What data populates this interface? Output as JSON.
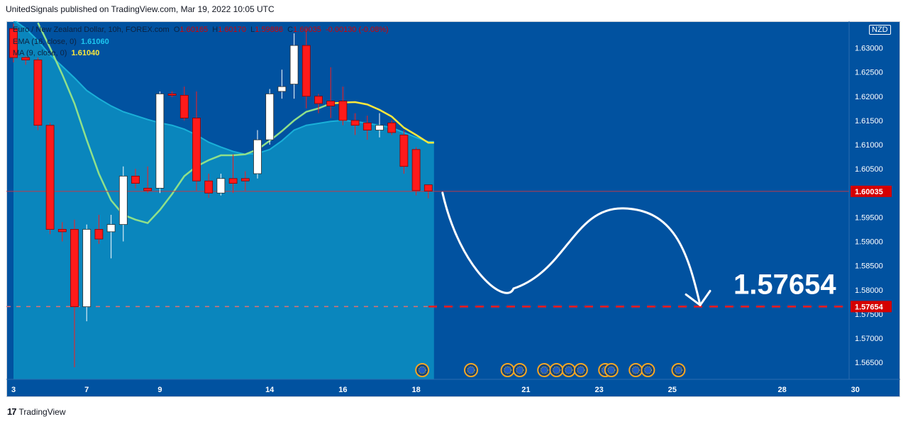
{
  "header": {
    "published": "UnitedSignals published on TradingView.com, Mar 19, 2022 10:05 UTC"
  },
  "legend": {
    "symbol": "Euro / New Zealand Dollar, 10h, FOREX.com",
    "o_label": "O",
    "o": "1.60165",
    "h_label": "H",
    "h": "1.60170",
    "l_label": "L",
    "l": "1.59886",
    "c_label": "C",
    "c": "1.60035",
    "change": "-0.00130 (-0.08%)",
    "ema_label": "EMA (16, close, 0)",
    "ema_value": "1.61060",
    "ma_label": "MA (9, close, 0)",
    "ma_value": "1.61040"
  },
  "currency_badge": "NZD",
  "target_label": "1.57654",
  "footer": {
    "brand": "TradingView"
  },
  "colors": {
    "background": "#0152a0",
    "area": "#0a86bd",
    "ema": "#1ab0d8",
    "ma": "#8fe08a",
    "ma_recent": "#ffe83b",
    "up": "#ffffff",
    "down": "#ff1a1a",
    "target": "#ff1a1a",
    "arrow": "#ffffff"
  },
  "chart_data": {
    "type": "candlestick",
    "symbol": "EURNZD",
    "timeframe": "10h",
    "ylim": [
      1.5615,
      1.6355
    ],
    "y_ticks": [
      "1.56500",
      "1.57000",
      "1.57500",
      "1.58000",
      "1.58500",
      "1.59000",
      "1.59500",
      "1.60000",
      "1.60500",
      "1.61000",
      "1.61500",
      "1.62000",
      "1.62500",
      "1.63000"
    ],
    "x_ticks": [
      {
        "label": "3",
        "i": 0
      },
      {
        "label": "7",
        "i": 6
      },
      {
        "label": "9",
        "i": 12
      },
      {
        "label": "14",
        "i": 21
      },
      {
        "label": "16",
        "i": 27
      },
      {
        "label": "18",
        "i": 33
      },
      {
        "label": "21",
        "i": 42
      },
      {
        "label": "23",
        "i": 48
      },
      {
        "label": "25",
        "i": 54
      },
      {
        "label": "28",
        "i": 63
      },
      {
        "label": "30",
        "i": 69
      }
    ],
    "candles": [
      {
        "o": 1.634,
        "h": 1.635,
        "l": 1.627,
        "c": 1.628
      },
      {
        "o": 1.628,
        "h": 1.6283,
        "l": 1.6265,
        "c": 1.6275
      },
      {
        "o": 1.6275,
        "h": 1.628,
        "l": 1.613,
        "c": 1.614
      },
      {
        "o": 1.614,
        "h": 1.6145,
        "l": 1.5915,
        "c": 1.5925
      },
      {
        "o": 1.5925,
        "h": 1.594,
        "l": 1.59,
        "c": 1.592
      },
      {
        "o": 1.5925,
        "h": 1.5945,
        "l": 1.564,
        "c": 1.5765
      },
      {
        "o": 1.5765,
        "h": 1.5935,
        "l": 1.5735,
        "c": 1.5925
      },
      {
        "o": 1.5925,
        "h": 1.5955,
        "l": 1.5895,
        "c": 1.5905
      },
      {
        "o": 1.592,
        "h": 1.5955,
        "l": 1.5865,
        "c": 1.5935
      },
      {
        "o": 1.5935,
        "h": 1.6055,
        "l": 1.59,
        "c": 1.6035
      },
      {
        "o": 1.6035,
        "h": 1.605,
        "l": 1.601,
        "c": 1.602
      },
      {
        "o": 1.601,
        "h": 1.6055,
        "l": 1.6,
        "c": 1.6005
      },
      {
        "o": 1.601,
        "h": 1.621,
        "l": 1.6,
        "c": 1.6205
      },
      {
        "o": 1.6205,
        "h": 1.621,
        "l": 1.6198,
        "c": 1.6202
      },
      {
        "o": 1.6202,
        "h": 1.622,
        "l": 1.615,
        "c": 1.6155
      },
      {
        "o": 1.6155,
        "h": 1.621,
        "l": 1.6005,
        "c": 1.6025
      },
      {
        "o": 1.6025,
        "h": 1.604,
        "l": 1.599,
        "c": 1.6
      },
      {
        "o": 1.6,
        "h": 1.604,
        "l": 1.5995,
        "c": 1.603
      },
      {
        "o": 1.603,
        "h": 1.608,
        "l": 1.6,
        "c": 1.602
      },
      {
        "o": 1.603,
        "h": 1.6045,
        "l": 1.6005,
        "c": 1.6025
      },
      {
        "o": 1.604,
        "h": 1.613,
        "l": 1.603,
        "c": 1.611
      },
      {
        "o": 1.611,
        "h": 1.6215,
        "l": 1.61,
        "c": 1.6205
      },
      {
        "o": 1.621,
        "h": 1.6255,
        "l": 1.6195,
        "c": 1.622
      },
      {
        "o": 1.6225,
        "h": 1.633,
        "l": 1.6195,
        "c": 1.6305
      },
      {
        "o": 1.6305,
        "h": 1.634,
        "l": 1.6175,
        "c": 1.62
      },
      {
        "o": 1.62,
        "h": 1.6205,
        "l": 1.6165,
        "c": 1.6185
      },
      {
        "o": 1.619,
        "h": 1.626,
        "l": 1.6155,
        "c": 1.618
      },
      {
        "o": 1.619,
        "h": 1.622,
        "l": 1.614,
        "c": 1.615
      },
      {
        "o": 1.615,
        "h": 1.6165,
        "l": 1.612,
        "c": 1.614
      },
      {
        "o": 1.6145,
        "h": 1.616,
        "l": 1.611,
        "c": 1.613
      },
      {
        "o": 1.613,
        "h": 1.6165,
        "l": 1.6115,
        "c": 1.614
      },
      {
        "o": 1.6145,
        "h": 1.615,
        "l": 1.612,
        "c": 1.6125
      },
      {
        "o": 1.612,
        "h": 1.613,
        "l": 1.604,
        "c": 1.6055
      },
      {
        "o": 1.609,
        "h": 1.6095,
        "l": 1.5995,
        "c": 1.6005
      },
      {
        "o": 1.6017,
        "h": 1.6017,
        "l": 1.5989,
        "c": 1.6004
      }
    ],
    "ema": [
      [
        0,
        1.6358
      ],
      [
        1,
        1.634
      ],
      [
        2,
        1.6315
      ],
      [
        3,
        1.6285
      ],
      [
        4,
        1.6262
      ],
      [
        5,
        1.6238
      ],
      [
        6,
        1.6212
      ],
      [
        7,
        1.6195
      ],
      [
        8,
        1.618
      ],
      [
        9,
        1.6168
      ],
      [
        10,
        1.616
      ],
      [
        11,
        1.6152
      ],
      [
        12,
        1.6145
      ],
      [
        13,
        1.614
      ],
      [
        14,
        1.6132
      ],
      [
        15,
        1.612
      ],
      [
        16,
        1.6105
      ],
      [
        17,
        1.6095
      ],
      [
        18,
        1.6086
      ],
      [
        19,
        1.608
      ],
      [
        20,
        1.6082
      ],
      [
        21,
        1.609
      ],
      [
        22,
        1.6108
      ],
      [
        23,
        1.613
      ],
      [
        24,
        1.614
      ],
      [
        25,
        1.6144
      ],
      [
        26,
        1.6148
      ],
      [
        27,
        1.615
      ],
      [
        28,
        1.6148
      ],
      [
        29,
        1.6144
      ],
      [
        30,
        1.614
      ],
      [
        31,
        1.6135
      ],
      [
        32,
        1.6125
      ],
      [
        33,
        1.6115
      ],
      [
        34,
        1.6106
      ]
    ],
    "ma": [
      [
        2,
        1.6352
      ],
      [
        3,
        1.63
      ],
      [
        4,
        1.6245
      ],
      [
        5,
        1.6185
      ],
      [
        6,
        1.611
      ],
      [
        7,
        1.604
      ],
      [
        8,
        1.5985
      ],
      [
        9,
        1.5955
      ],
      [
        10,
        1.5945
      ],
      [
        11,
        1.5938
      ],
      [
        12,
        1.5965
      ],
      [
        13,
        1.5998
      ],
      [
        14,
        1.6035
      ],
      [
        15,
        1.6055
      ],
      [
        16,
        1.6068
      ],
      [
        17,
        1.6078
      ],
      [
        18,
        1.6078
      ],
      [
        19,
        1.608
      ],
      [
        20,
        1.609
      ],
      [
        21,
        1.6108
      ],
      [
        22,
        1.6128
      ],
      [
        23,
        1.615
      ],
      [
        24,
        1.6168
      ],
      [
        25,
        1.6175
      ],
      [
        26,
        1.6185
      ],
      [
        27,
        1.6187
      ],
      [
        28,
        1.6188
      ],
      [
        29,
        1.6183
      ],
      [
        30,
        1.6172
      ],
      [
        31,
        1.6158
      ],
      [
        32,
        1.6135
      ],
      [
        33,
        1.612
      ],
      [
        34,
        1.6104
      ]
    ],
    "current_price": 1.60035,
    "current_price_label": "1.60035",
    "target_price": 1.57654,
    "target_price_label": "1.57654",
    "projection": {
      "type": "curved-arrow-down",
      "end_price": 1.57654
    },
    "event_markers": [
      33.5,
      37.5,
      40.5,
      41.5,
      43.5,
      44.5,
      45.5,
      46.5,
      48.5,
      49,
      51,
      52,
      54.5
    ]
  }
}
